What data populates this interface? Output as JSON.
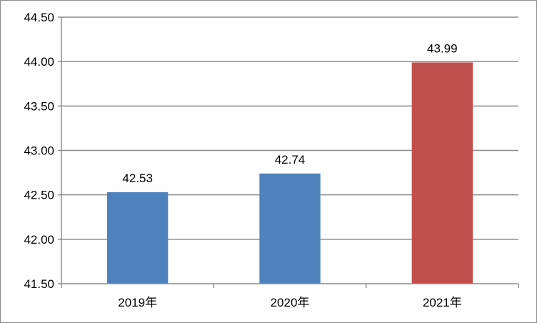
{
  "chart_data": {
    "type": "bar",
    "categories": [
      "2019年",
      "2020年",
      "2021年"
    ],
    "values": [
      42.53,
      42.74,
      43.99
    ],
    "data_labels": [
      "42.53",
      "42.74",
      "43.99"
    ],
    "bar_colors": [
      "#4f81bd",
      "#4f81bd",
      "#c0504d"
    ],
    "title": "",
    "xlabel": "",
    "ylabel": "",
    "ylim": [
      41.5,
      44.5
    ],
    "yticks": [
      41.5,
      42.0,
      42.5,
      43.0,
      43.5,
      44.0,
      44.5
    ],
    "ytick_labels": [
      "41.50",
      "42.00",
      "42.50",
      "43.00",
      "43.50",
      "44.00",
      "44.50"
    ],
    "grid": true,
    "legend": "none"
  }
}
